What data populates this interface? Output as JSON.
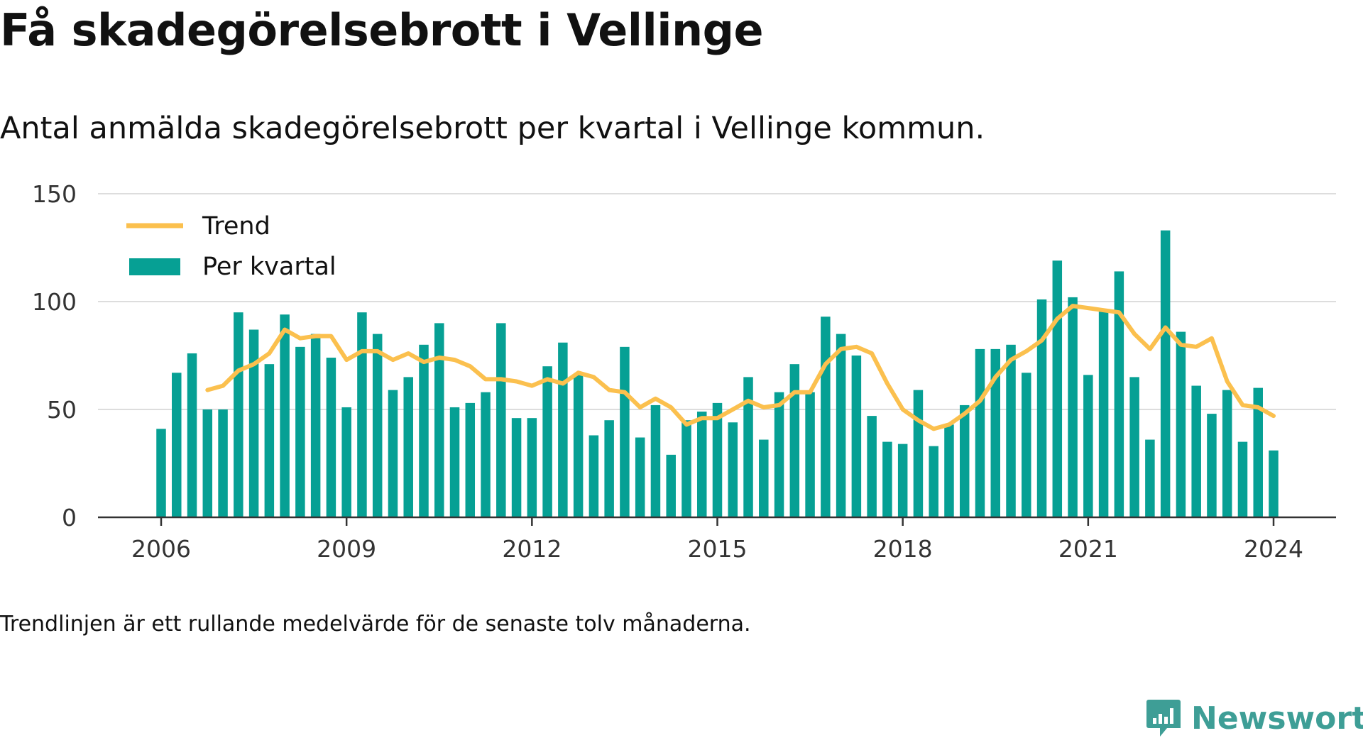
{
  "title": "Få skadegörelsebrott i Vellinge",
  "subtitle": "Antal anmälda skadegörelsebrott per kvartal i Vellinge kommun.",
  "note": "Trendlinjen är ett rullande medelvärde för de senaste tolv månaderna.",
  "brand": {
    "name": "Newsworthy",
    "icon": "newsworthy-logo-icon",
    "color": "#3e9e96"
  },
  "colors": {
    "bars": "#06a094",
    "trend": "#fbc04e",
    "grid": "#dddddd",
    "axis": "#333333"
  },
  "chart_data": {
    "type": "bar",
    "title": "Få skadegörelsebrott i Vellinge",
    "xlabel": "",
    "ylabel": "",
    "ylim": [
      0,
      150
    ],
    "yticks": [
      "0",
      "50",
      "100",
      "150"
    ],
    "xticks": [
      "2006",
      "2009",
      "2012",
      "2015",
      "2018",
      "2021",
      "2024"
    ],
    "grid": true,
    "legend_position": "top-left",
    "categories": [
      "2006 Q1",
      "2006 Q2",
      "2006 Q3",
      "2006 Q4",
      "2007 Q1",
      "2007 Q2",
      "2007 Q3",
      "2007 Q4",
      "2008 Q1",
      "2008 Q2",
      "2008 Q3",
      "2008 Q4",
      "2009 Q1",
      "2009 Q2",
      "2009 Q3",
      "2009 Q4",
      "2010 Q1",
      "2010 Q2",
      "2010 Q3",
      "2010 Q4",
      "2011 Q1",
      "2011 Q2",
      "2011 Q3",
      "2011 Q4",
      "2012 Q1",
      "2012 Q2",
      "2012 Q3",
      "2012 Q4",
      "2013 Q1",
      "2013 Q2",
      "2013 Q3",
      "2013 Q4",
      "2014 Q1",
      "2014 Q2",
      "2014 Q3",
      "2014 Q4",
      "2015 Q1",
      "2015 Q2",
      "2015 Q3",
      "2015 Q4",
      "2016 Q1",
      "2016 Q2",
      "2016 Q3",
      "2016 Q4",
      "2017 Q1",
      "2017 Q2",
      "2017 Q3",
      "2017 Q4",
      "2018 Q1",
      "2018 Q2",
      "2018 Q3",
      "2018 Q4",
      "2019 Q1",
      "2019 Q2",
      "2019 Q3",
      "2019 Q4",
      "2020 Q1",
      "2020 Q2",
      "2020 Q3",
      "2020 Q4",
      "2021 Q1",
      "2021 Q2",
      "2021 Q3",
      "2021 Q4",
      "2022 Q1",
      "2022 Q2",
      "2022 Q3",
      "2022 Q4",
      "2023 Q1",
      "2023 Q2",
      "2023 Q3",
      "2023 Q4",
      "2024 Q1"
    ],
    "series": [
      {
        "name": "Per kvartal",
        "type": "bar",
        "values": [
          41,
          67,
          76,
          50,
          50,
          95,
          87,
          71,
          94,
          79,
          85,
          74,
          51,
          95,
          85,
          59,
          65,
          80,
          90,
          51,
          53,
          58,
          90,
          46,
          46,
          70,
          81,
          66,
          38,
          45,
          79,
          37,
          52,
          29,
          45,
          49,
          53,
          44,
          65,
          36,
          58,
          71,
          58,
          93,
          85,
          75,
          47,
          35,
          34,
          59,
          33,
          43,
          52,
          78,
          78,
          80,
          67,
          101,
          119,
          102,
          66,
          96,
          114,
          65,
          36,
          133,
          86,
          61,
          48,
          59,
          35,
          60,
          31
        ]
      },
      {
        "name": "Trend",
        "type": "line",
        "values": [
          null,
          null,
          null,
          59,
          61,
          68,
          71,
          76,
          87,
          83,
          84,
          84,
          73,
          77,
          77,
          73,
          76,
          72,
          74,
          73,
          70,
          64,
          64,
          63,
          61,
          64,
          62,
          67,
          65,
          59,
          58,
          51,
          55,
          51,
          43,
          46,
          46,
          50,
          54,
          51,
          52,
          58,
          58,
          71,
          78,
          79,
          76,
          62,
          50,
          45,
          41,
          43,
          48,
          54,
          65,
          73,
          77,
          82,
          92,
          98,
          97,
          96,
          95,
          85,
          78,
          88,
          80,
          79,
          83,
          63,
          52,
          51,
          47
        ]
      }
    ]
  }
}
